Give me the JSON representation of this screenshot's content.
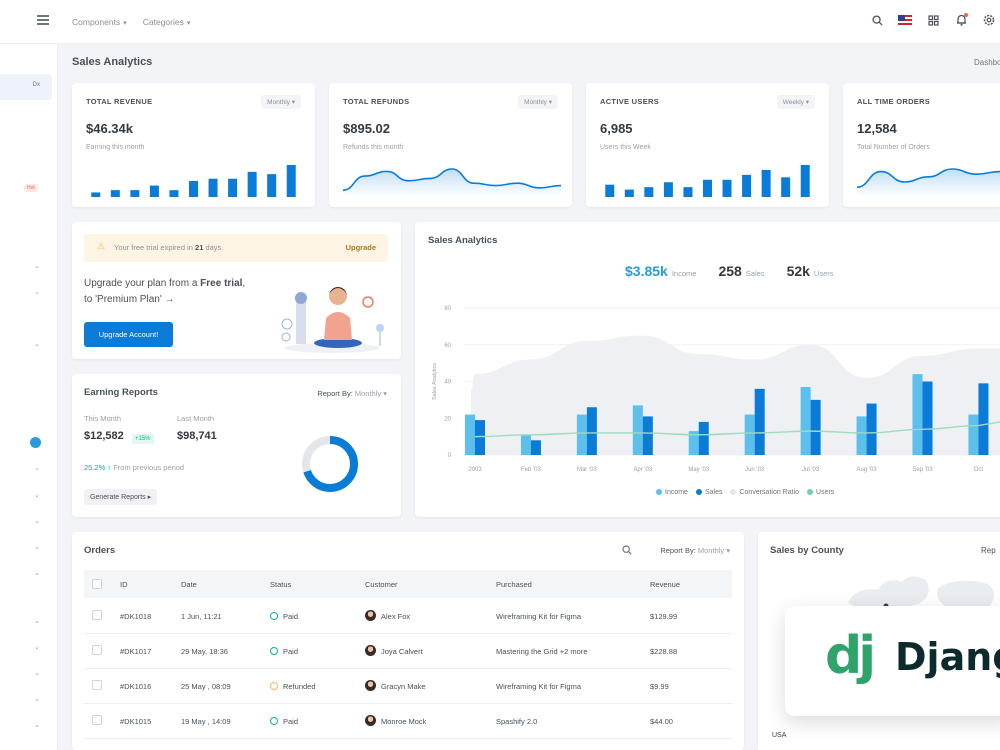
{
  "topbar": {
    "nav": [
      {
        "label": "Components"
      },
      {
        "label": "Categories"
      }
    ],
    "icons": [
      "search-icon",
      "us-flag-icon",
      "apps-grid-icon",
      "bell-icon",
      "settings-icon"
    ]
  },
  "sidebar": {
    "active_label": "Dx",
    "badge": "Hot"
  },
  "page": {
    "title": "Sales Analytics",
    "breadcrumb": "Dashbo"
  },
  "stats": [
    {
      "label": "TOTAL REVENUE",
      "period": "Monthly",
      "value": "$46.34k",
      "sub": "Earning this month",
      "chart": "bar",
      "values": [
        2,
        3,
        3,
        5,
        3,
        7,
        8,
        8,
        11,
        10,
        14
      ]
    },
    {
      "label": "TOTAL REFUNDS",
      "period": "Monthly",
      "value": "$895.02",
      "sub": "Refunds this month",
      "chart": "area",
      "values": [
        2,
        8,
        10,
        6,
        7,
        11,
        5,
        4,
        5,
        3,
        4
      ]
    },
    {
      "label": "ACTIVE USERS",
      "period": "Weekly",
      "value": "6,985",
      "sub": "Users this Week",
      "chart": "bar",
      "values": [
        5,
        3,
        4,
        6,
        4,
        7,
        7,
        9,
        11,
        8,
        13
      ]
    },
    {
      "label": "ALL TIME ORDERS",
      "period": "",
      "value": "12,584",
      "sub": "Total Number of Orders",
      "chart": "area",
      "values": [
        3,
        9,
        5,
        7,
        10,
        8,
        9
      ]
    }
  ],
  "upgrade": {
    "alert_text_pre": "Your free trial expired in ",
    "alert_days": "21",
    "alert_text_post": " days.",
    "alert_link": "Upgrade",
    "text_pre": "Upgrade your plan from a ",
    "text_bold": "Free trial",
    "text_post": ", to 'Premium Plan' →",
    "button": "Upgrade Account!"
  },
  "earning": {
    "title": "Earning Reports",
    "report_label": "Report By:",
    "report_value": "Monthly",
    "this_month_label": "This Month",
    "this_month_value": "$12,582",
    "badge": "+15%",
    "last_month_label": "Last Month",
    "last_month_value": "$98,741",
    "prev_pct": "25.2%",
    "prev_text": "From previous period",
    "button": "Generate Reports",
    "donut": [
      {
        "name": "segment-a",
        "value": 70,
        "color": "#0a7cd8"
      },
      {
        "name": "segment-b",
        "value": 30,
        "color": "#e3e6ea"
      }
    ]
  },
  "analytics": {
    "title": "Sales Analytics",
    "stats": [
      {
        "value": "$3.85k",
        "label": "Income"
      },
      {
        "value": "258",
        "label": "Sales"
      },
      {
        "value": "52k",
        "label": "Users"
      }
    ]
  },
  "chart_data": {
    "type": "bar",
    "categories": [
      "2003",
      "Feb '03",
      "Mar '03",
      "Apr '03",
      "May '03",
      "Jun '03",
      "Jul '03",
      "Aug '03",
      "Sep '03",
      "Oct"
    ],
    "ylabel": "Sales Analytics",
    "ylim": [
      0,
      80
    ],
    "yticks": [
      0,
      20,
      40,
      60,
      80
    ],
    "legend_position": "bottom",
    "series": [
      {
        "name": "Income",
        "type": "bar",
        "color": "#5bc0eb",
        "values": [
          22,
          11,
          22,
          27,
          13,
          22,
          37,
          21,
          44,
          22
        ]
      },
      {
        "name": "Sales",
        "type": "bar",
        "color": "#0a7cd8",
        "values": [
          19,
          8,
          26,
          21,
          18,
          36,
          30,
          28,
          40,
          39
        ]
      },
      {
        "name": "Conversation Ratio",
        "type": "area",
        "color": "#eef0f3",
        "values": [
          44,
          52,
          62,
          65,
          55,
          52,
          60,
          42,
          54,
          58
        ]
      },
      {
        "name": "Users",
        "type": "line",
        "color": "#9bdcbf",
        "values": [
          10,
          11,
          12,
          12,
          11,
          12,
          13,
          12,
          14,
          16
        ]
      }
    ]
  },
  "orders": {
    "title": "Orders",
    "report_label": "Report By:",
    "report_value": "Monthly",
    "columns": [
      "ID",
      "Date",
      "Status",
      "Customer",
      "Purchased",
      "Revenue"
    ],
    "rows": [
      {
        "id": "#DK1018",
        "date": "1 Jun, 11:21",
        "status": "Paid",
        "status_type": "paid",
        "customer": "Alex Fox",
        "purchased": "Wireframing Kit for Figma",
        "revenue": "$129.99"
      },
      {
        "id": "#DK1017",
        "date": "29 May, 18:36",
        "status": "Paid",
        "status_type": "paid",
        "customer": "Joya Calvert",
        "purchased": "Mastering the Grid +2 more",
        "revenue": "$228.88"
      },
      {
        "id": "#DK1016",
        "date": "25 May , 08:09",
        "status": "Refunded",
        "status_type": "refund",
        "customer": "Gracyn Make",
        "purchased": "Wireframing Kit for Figma",
        "revenue": "$9.99"
      },
      {
        "id": "#DK1015",
        "date": "19 May , 14:09",
        "status": "Paid",
        "status_type": "paid",
        "customer": "Monroe Mock",
        "purchased": "Spashify 2.0",
        "revenue": "$44.00"
      }
    ]
  },
  "map": {
    "title": "Sales by County",
    "report": "Rep",
    "bottom_label": "USA"
  },
  "django": {
    "logo": "dj",
    "word": "Django"
  }
}
